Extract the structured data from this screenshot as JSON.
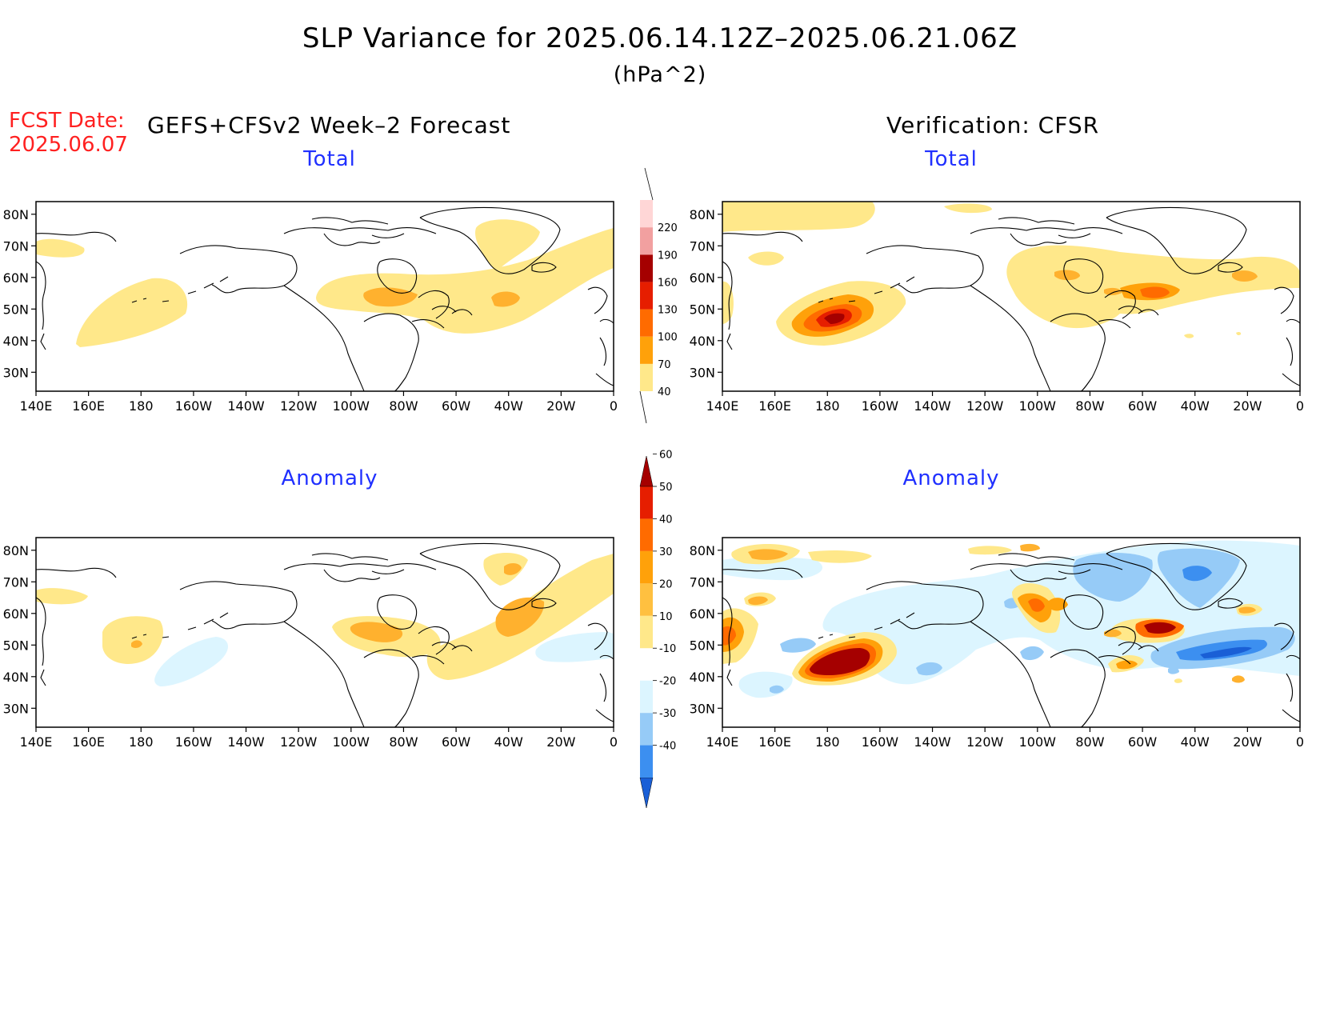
{
  "title": "SLP Variance for 2025.06.14.12Z–2025.06.21.06Z",
  "units": "(hPa^2)",
  "forecast_date": {
    "label": "FCST Date:",
    "value": "2025.06.07"
  },
  "left_header": "GEFS+CFSv2 Week–2 Forecast",
  "right_header": "Verification: CFSR",
  "panels": [
    {
      "id": "fcst-total",
      "title": "Total"
    },
    {
      "id": "verif-total",
      "title": "Total"
    },
    {
      "id": "fcst-anomaly",
      "title": "Anomaly"
    },
    {
      "id": "verif-anomaly",
      "title": "Anomaly"
    }
  ],
  "map": {
    "lat_labels": [
      "80N",
      "70N",
      "60N",
      "50N",
      "40N",
      "30N"
    ],
    "lat_values": [
      80,
      70,
      60,
      50,
      40,
      30
    ],
    "lon_labels": [
      "140E",
      "160E",
      "180",
      "160W",
      "140W",
      "120W",
      "100W",
      "80W",
      "60W",
      "40W",
      "20W",
      "0"
    ],
    "lon_range": [
      140,
      360
    ],
    "lat_range": [
      24,
      84
    ]
  },
  "total_colorbar": {
    "labels": [
      "40",
      "70",
      "100",
      "130",
      "160",
      "190",
      "220"
    ],
    "colors": [
      "#ffe88a",
      "#ffa10a",
      "#ff6b00",
      "#e61e00",
      "#a50000",
      "#f2a0a0",
      "#ffd6d6"
    ]
  },
  "anomaly_colorbar": {
    "labels": [
      "-40",
      "-30",
      "-20",
      "-10",
      "10",
      "20",
      "30",
      "40",
      "50",
      "60"
    ],
    "colors": [
      "#1a5fd6",
      "#3c8ff0",
      "#96cbf7",
      "#dcf5ff",
      "#ffffff",
      "#ffe88a",
      "#ffc040",
      "#ffa10a",
      "#ff6b00",
      "#e61e00",
      "#a50000"
    ]
  }
}
